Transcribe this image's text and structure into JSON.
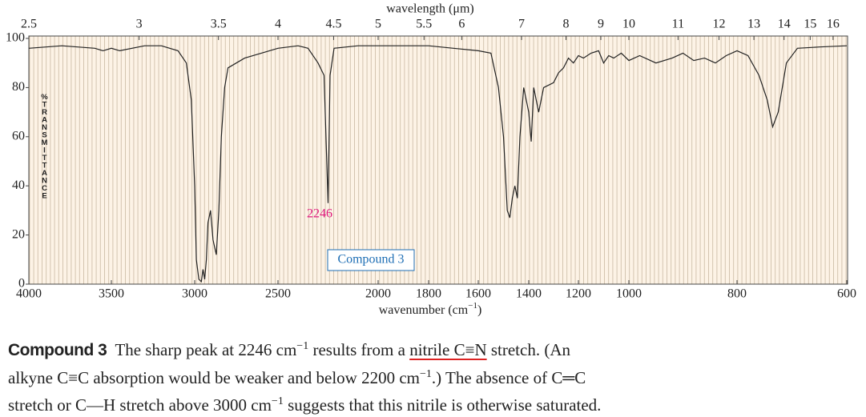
{
  "chart_data": {
    "type": "line",
    "top_axis_label": "wavelength (μm)",
    "x_label": [
      {
        "text": "wavenumber (cm"
      },
      {
        "text": "−1",
        "style": "sup"
      },
      {
        "text": ")"
      }
    ],
    "y_label": "%TRANSMITTANCE",
    "x": [
      4000,
      3800,
      3600,
      3550,
      3500,
      3450,
      3300,
      3200,
      3100,
      3050,
      3020,
      3000,
      2990,
      2975,
      2960,
      2950,
      2940,
      2930,
      2920,
      2905,
      2890,
      2870,
      2855,
      2840,
      2820,
      2800,
      2750,
      2700,
      2600,
      2500,
      2400,
      2350,
      2300,
      2270,
      2250,
      2240,
      2220,
      2100,
      2000,
      1800,
      1700,
      1600,
      1550,
      1520,
      1500,
      1485,
      1475,
      1465,
      1455,
      1445,
      1435,
      1420,
      1400,
      1390,
      1380,
      1370,
      1360,
      1340,
      1300,
      1280,
      1260,
      1240,
      1220,
      1200,
      1180,
      1150,
      1120,
      1100,
      1080,
      1060,
      1030,
      1000,
      980,
      950,
      920,
      900,
      880,
      860,
      840,
      820,
      800,
      780,
      760,
      745,
      735,
      725,
      710,
      690,
      650,
      600
    ],
    "values": [
      96,
      97,
      96,
      95,
      96,
      95,
      97,
      97,
      95,
      90,
      75,
      40,
      10,
      2,
      1,
      6,
      2,
      10,
      25,
      30,
      18,
      12,
      30,
      60,
      80,
      88,
      90,
      92,
      94,
      96,
      97,
      96,
      90,
      85,
      33,
      85,
      96,
      97,
      97,
      97,
      96,
      95,
      94,
      80,
      60,
      30,
      27,
      35,
      40,
      35,
      60,
      80,
      70,
      58,
      80,
      75,
      70,
      80,
      82,
      86,
      88,
      92,
      90,
      93,
      92,
      94,
      95,
      90,
      93,
      92,
      94,
      91,
      93,
      90,
      92,
      94,
      91,
      92,
      90,
      93,
      95,
      93,
      85,
      75,
      64,
      70,
      90,
      96,
      96.5,
      97
    ],
    "color": "#222222",
    "xlim": [
      4000,
      600
    ],
    "ylim": [
      0,
      100
    ],
    "xticks": [
      4000,
      3500,
      3000,
      2500,
      2000,
      1800,
      1600,
      1400,
      1200,
      1000,
      800,
      600
    ],
    "yticks": [
      0,
      20,
      40,
      60,
      80,
      100
    ],
    "x2ticks": [
      2.5,
      3,
      3.5,
      4,
      4.5,
      5,
      5.5,
      6,
      7,
      8,
      9,
      10,
      11,
      12,
      13,
      14,
      15,
      16
    ],
    "peak_label": "2246",
    "compound_label": "Compound 3"
  },
  "caption": {
    "lines": [
      [
        {
          "text": "Compound 3",
          "style": "bold"
        },
        {
          "text": "  The sharp peak at 2246 cm"
        },
        {
          "text": "−1",
          "style": "sup"
        },
        {
          "text": " results from a "
        },
        {
          "text": "nitrile C≡N",
          "style": "underline"
        },
        {
          "text": " stretch. (An"
        }
      ],
      [
        {
          "text": "alkyne C≡C absorption would be weaker and below 2200 cm"
        },
        {
          "text": "−1",
          "style": "sup"
        },
        {
          "text": ".) The absence of C═C"
        }
      ],
      [
        {
          "text": "stretch or C—H stretch above 3000 cm"
        },
        {
          "text": "−1",
          "style": "sup"
        },
        {
          "text": " suggests that this nitrile is otherwise saturated."
        }
      ]
    ]
  }
}
